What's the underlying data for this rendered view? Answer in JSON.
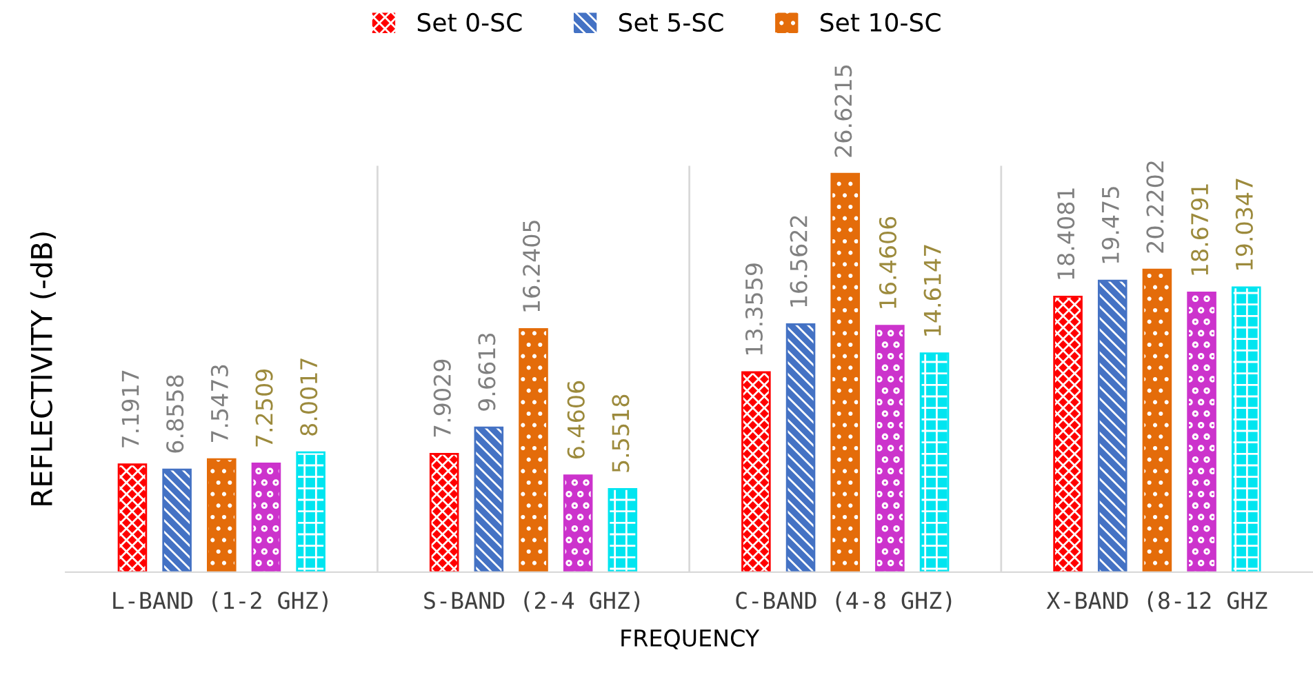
{
  "chart_data": {
    "type": "bar",
    "xlabel": "FREQUENCY",
    "ylabel": "REFLECTIVITY (-dB)",
    "categories": [
      "L-BAND (1-2 GHZ)",
      "S-BAND (2-4 GHZ)",
      "C-BAND (4-8 GHZ)",
      "X-BAND (8-12 GHZ"
    ],
    "series": [
      {
        "name": "Set 0-SC",
        "color": "#ff0000",
        "values": [
          7.1917,
          7.9029,
          13.3559,
          18.4081
        ]
      },
      {
        "name": "Set 5-SC",
        "color": "#4472c4",
        "values": [
          6.8558,
          9.6613,
          16.5622,
          19.475
        ]
      },
      {
        "name": "Set 10-SC",
        "color": "#e46c0a",
        "values": [
          7.5473,
          16.2405,
          26.6215,
          20.2202
        ]
      },
      {
        "color": "#cc33cc",
        "values": [
          7.2509,
          6.4606,
          16.4606,
          18.6791
        ]
      },
      {
        "color": "#00e5f0",
        "values": [
          8.0017,
          5.5518,
          14.6147,
          19.0347
        ]
      }
    ],
    "data_labels": true,
    "grid": "x",
    "legend": "top",
    "tick_labels": "x"
  }
}
